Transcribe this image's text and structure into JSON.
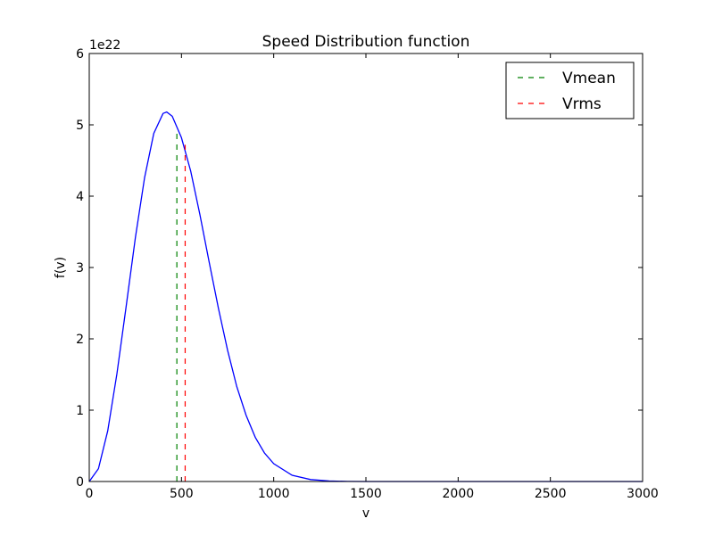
{
  "chart_data": {
    "type": "line",
    "title": "Speed Distribution function",
    "xlabel": "v",
    "ylabel": "f(v)",
    "y_scale_label": "1e22",
    "xlim": [
      0,
      3000
    ],
    "ylim": [
      0,
      6
    ],
    "xticks": [
      0,
      500,
      1000,
      1500,
      2000,
      2500,
      3000
    ],
    "yticks": [
      0,
      1,
      2,
      3,
      4,
      5,
      6
    ],
    "grid": false,
    "legend_position": "top-right",
    "series": [
      {
        "type": "curve",
        "color": "#0000ff",
        "x": [
          0,
          50,
          100,
          150,
          200,
          250,
          300,
          350,
          400,
          420,
          450,
          500,
          550,
          600,
          650,
          700,
          750,
          800,
          850,
          900,
          950,
          1000,
          1100,
          1200,
          1300,
          1400,
          1500,
          1750,
          2000,
          2500,
          3000
        ],
        "y": [
          0,
          0.18,
          0.71,
          1.51,
          2.45,
          3.42,
          4.26,
          4.88,
          5.16,
          5.18,
          5.12,
          4.82,
          4.35,
          3.74,
          3.08,
          2.43,
          1.84,
          1.33,
          0.93,
          0.62,
          0.4,
          0.25,
          0.088,
          0.027,
          0.0072,
          0.0017,
          0.00036,
          4e-06,
          0,
          0,
          0
        ]
      },
      {
        "name": "Vmean",
        "type": "vline",
        "color": "#008000",
        "x": 475,
        "y_top": 4.92
      },
      {
        "name": "Vrms",
        "type": "vline",
        "color": "#ff0000",
        "x": 520,
        "y_top": 4.72
      }
    ]
  }
}
